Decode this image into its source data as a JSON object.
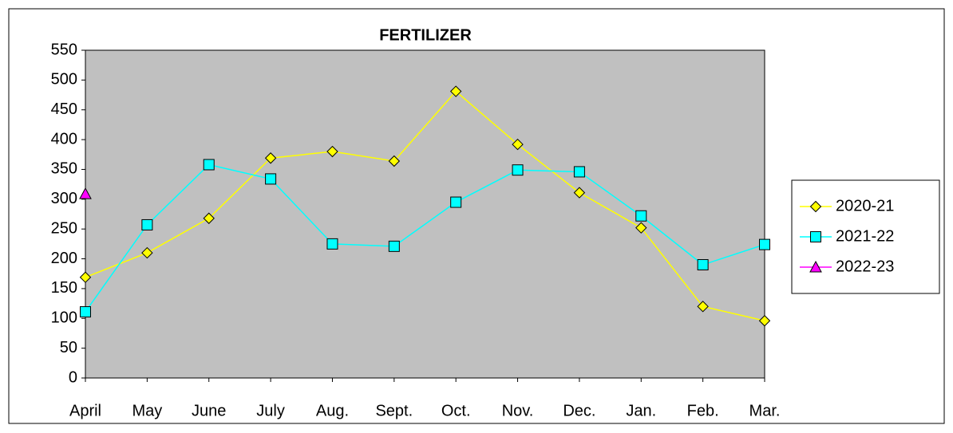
{
  "chart_data": {
    "type": "line",
    "title": "FERTILIZER",
    "categories": [
      "April",
      "May",
      "June",
      "July",
      "Aug.",
      "Sept.",
      "Oct.",
      "Nov.",
      "Dec.",
      "Jan.",
      "Feb.",
      "Mar."
    ],
    "series": [
      {
        "name": "2020-21",
        "color": "#ffff00",
        "marker": "diamond",
        "values": [
          169,
          210,
          268,
          369,
          380,
          364,
          481,
          392,
          311,
          252,
          120,
          96
        ]
      },
      {
        "name": "2021-22",
        "color": "#00ffff",
        "marker": "square",
        "values": [
          111,
          257,
          358,
          334,
          225,
          221,
          295,
          349,
          346,
          272,
          190,
          224
        ]
      },
      {
        "name": "2022-23",
        "color": "#ff00ff",
        "marker": "triangle",
        "values": [
          309,
          null,
          null,
          null,
          null,
          null,
          null,
          null,
          null,
          null,
          null,
          null
        ]
      }
    ],
    "ylim": [
      0,
      550
    ],
    "yticks": [
      0,
      50,
      100,
      150,
      200,
      250,
      300,
      350,
      400,
      450,
      500,
      550
    ],
    "grid": false,
    "plot_background": "#c0c0c0",
    "legend": "right"
  }
}
